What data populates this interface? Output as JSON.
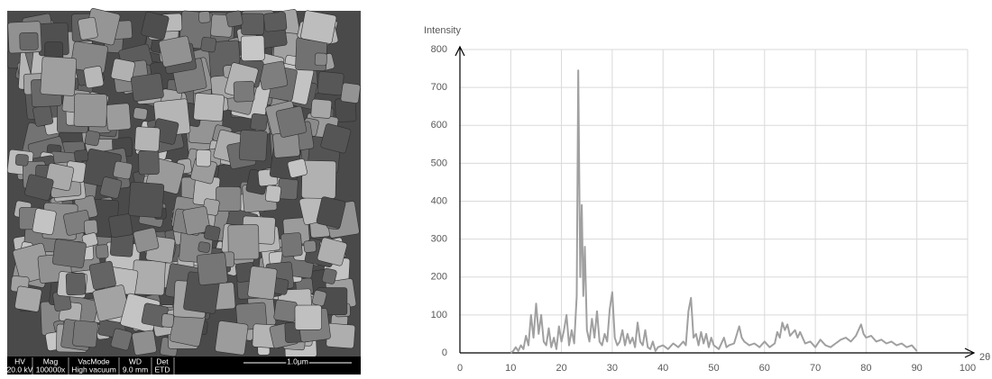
{
  "sem_image": {
    "info_headers": [
      "HV",
      "Mag",
      "VacMode",
      "WD",
      "Det"
    ],
    "info_values": [
      "20.0 kV",
      "100000x",
      "High vacuum",
      "9.0 mm",
      "ETD"
    ],
    "scale_bar": "1.0μm"
  },
  "chart_data": {
    "type": "line",
    "y_label": "Intensity",
    "x_label": "2θ",
    "xlim": [
      0,
      100
    ],
    "xticks": [
      0,
      10,
      20,
      30,
      40,
      50,
      60,
      70,
      80,
      90,
      100
    ],
    "ylim": [
      0,
      800
    ],
    "yticks": [
      0,
      100,
      200,
      300,
      400,
      500,
      600,
      700,
      800
    ],
    "grid": true,
    "series": [
      {
        "color": "#a0a0a0",
        "x": [
          10,
          10.5,
          11,
          11.5,
          12,
          12.5,
          13,
          13.5,
          14,
          14.5,
          15,
          15.5,
          16,
          16.5,
          17,
          17.5,
          18,
          18.5,
          19,
          19.5,
          20,
          20.5,
          21,
          21.5,
          22,
          22.5,
          23,
          23.3,
          23.7,
          24,
          24.3,
          24.6,
          25,
          25.5,
          26,
          26.5,
          27,
          27.5,
          28,
          28.5,
          29,
          29.5,
          30,
          30.5,
          31,
          31.5,
          32,
          32.5,
          33,
          33.5,
          34,
          34.5,
          35,
          35.5,
          36,
          36.5,
          37,
          37.5,
          38,
          38.5,
          39,
          40,
          41,
          42,
          43,
          44,
          44.5,
          45,
          45.5,
          46,
          46.5,
          47,
          47.5,
          48,
          48.5,
          49,
          49.5,
          50,
          51,
          52,
          52.5,
          53,
          54,
          55,
          55.5,
          56,
          57,
          58,
          59,
          60,
          61,
          62,
          62.5,
          63,
          63.5,
          64,
          64.5,
          65,
          66,
          66.5,
          67,
          68,
          69,
          70,
          71,
          72,
          73,
          74,
          75,
          76,
          77,
          78,
          79,
          79.5,
          80,
          81,
          82,
          83,
          84,
          85,
          86,
          87,
          88,
          89,
          90
        ],
        "values": [
          0,
          5,
          15,
          5,
          20,
          10,
          45,
          20,
          100,
          40,
          130,
          50,
          100,
          30,
          20,
          65,
          15,
          40,
          10,
          70,
          30,
          60,
          100,
          20,
          60,
          25,
          150,
          745,
          200,
          390,
          150,
          280,
          60,
          30,
          90,
          40,
          110,
          30,
          20,
          50,
          30,
          115,
          160,
          40,
          20,
          30,
          60,
          20,
          50,
          25,
          40,
          15,
          80,
          30,
          20,
          60,
          15,
          10,
          30,
          5,
          15,
          20,
          10,
          25,
          15,
          30,
          20,
          110,
          145,
          40,
          50,
          20,
          55,
          25,
          50,
          15,
          40,
          20,
          10,
          40,
          15,
          20,
          25,
          70,
          40,
          30,
          20,
          25,
          15,
          30,
          15,
          25,
          55,
          40,
          80,
          60,
          75,
          45,
          60,
          40,
          55,
          25,
          30,
          15,
          35,
          20,
          15,
          25,
          35,
          40,
          30,
          45,
          75,
          50,
          40,
          45,
          30,
          35,
          25,
          30,
          20,
          25,
          15,
          20,
          5
        ]
      }
    ]
  }
}
